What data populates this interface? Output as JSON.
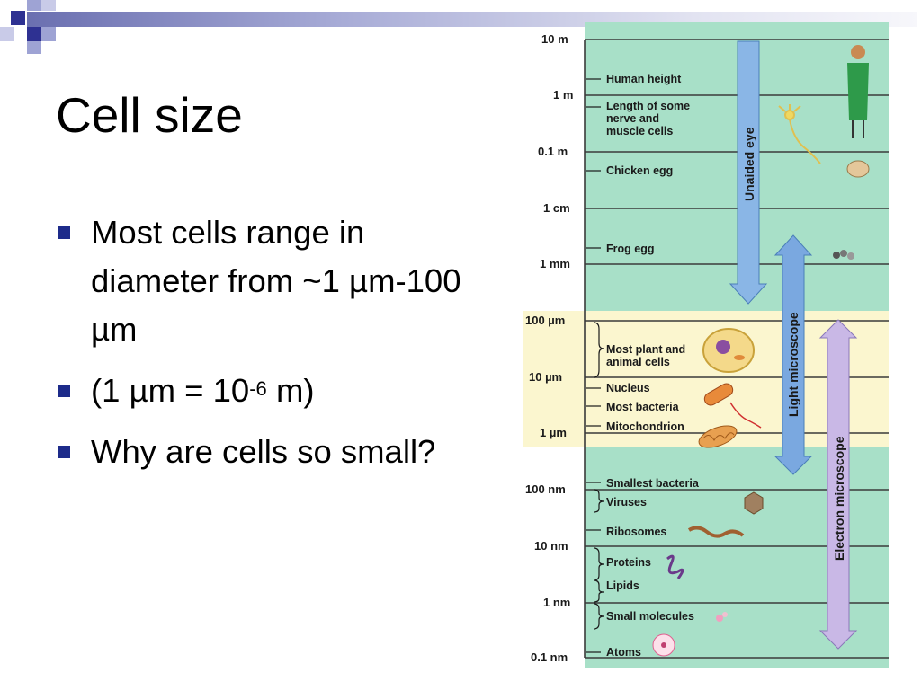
{
  "slide": {
    "title": "Cell size",
    "bullets": {
      "b1": "Most cells range in diameter from ~1 µm-100 µm",
      "b2_pre": "(1 µm = 10",
      "b2_sup": "-6",
      "b2_post": " m)",
      "b3": "Why are cells so small?"
    },
    "colors": {
      "bullet": "#1d2b8a",
      "accent_bar": "#6a6fb0"
    }
  },
  "figure": {
    "scale_labels": [
      "10 m",
      "1 m",
      "0.1 m",
      "1 cm",
      "1 mm",
      "100 µm",
      "10  µm",
      "1  µm",
      "100 nm",
      "10 nm",
      "1 nm",
      "0.1 nm"
    ],
    "items": [
      "Human height",
      "Length of some",
      "nerve and",
      "muscle cells",
      "Chicken egg",
      "Frog egg",
      "Most plant and",
      "animal cells",
      "Nucleus",
      "Most bacteria",
      "Mitochondrion",
      "Smallest bacteria",
      "Viruses",
      "Ribosomes",
      "Proteins",
      "Lipids",
      "Small molecules",
      "Atoms"
    ],
    "ranges": {
      "unaided_eye": "Unaided eye",
      "light_microscope": "Light microscope",
      "electron_microscope": "Electron microscope"
    },
    "colors": {
      "background": "#a8e0c8",
      "light_band": "#fbf6cf",
      "eye_arrow": "#8ab6e6",
      "light_arrow": "#7aa8e0",
      "electron_arrow": "#c9b8e6"
    }
  }
}
